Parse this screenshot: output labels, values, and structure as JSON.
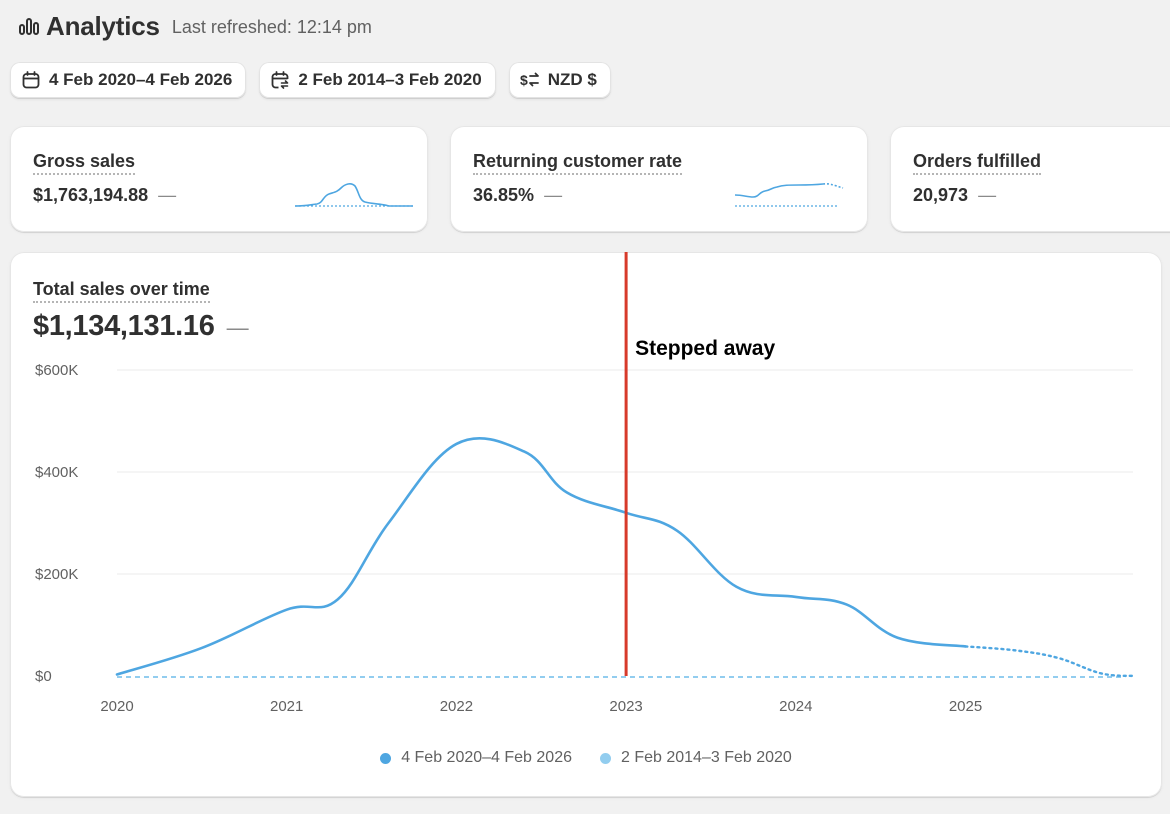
{
  "header": {
    "title": "Analytics",
    "refreshed": "Last refreshed: 12:14 pm"
  },
  "filters": {
    "date_range": "4 Feb 2020–4 Feb 2026",
    "compare_range": "2 Feb 2014–3 Feb 2020",
    "currency": "NZD $"
  },
  "metrics": [
    {
      "label": "Gross sales",
      "value": "$1,763,194.88",
      "dash": "—"
    },
    {
      "label": "Returning customer rate",
      "value": "36.85%",
      "dash": "—"
    },
    {
      "label": "Orders fulfilled",
      "value": "20,973",
      "dash": "—"
    }
  ],
  "main": {
    "title": "Total sales over time",
    "value": "$1,134,131.16",
    "dash": "—"
  },
  "colors": {
    "primary": "#4ea6e1",
    "comparison": "#92cdef",
    "annotation": "#d73a2a"
  },
  "chart_data": {
    "type": "line",
    "title": "Total sales over time",
    "ylim": [
      0,
      600000
    ],
    "yticks": [
      {
        "value": 0,
        "label": "$0"
      },
      {
        "value": 200000,
        "label": "$200K"
      },
      {
        "value": 400000,
        "label": "$400K"
      },
      {
        "value": 600000,
        "label": "$600K"
      }
    ],
    "xlim": [
      2020,
      2026
    ],
    "xticks": [
      {
        "value": 2020,
        "label": "2020"
      },
      {
        "value": 2021,
        "label": "2021"
      },
      {
        "value": 2022,
        "label": "2022"
      },
      {
        "value": 2023,
        "label": "2023"
      },
      {
        "value": 2024,
        "label": "2024"
      },
      {
        "value": 2025,
        "label": "2025"
      }
    ],
    "series": [
      {
        "name": "4 Feb 2020–4 Feb 2026",
        "style": "solid",
        "x": [
          2020,
          2020.5,
          2021,
          2021.3,
          2021.6,
          2022,
          2022.4,
          2022.65,
          2023,
          2023.3,
          2023.65,
          2024,
          2024.3,
          2024.6,
          2025
        ],
        "y": [
          3000,
          55000,
          130000,
          150000,
          300000,
          455000,
          440000,
          360000,
          320000,
          285000,
          175000,
          155000,
          140000,
          75000,
          58000
        ]
      },
      {
        "name": "4 Feb 2020–4 Feb 2026 (projected)",
        "style": "dotted",
        "x": [
          2025,
          2025.3,
          2025.55,
          2025.8,
          2026
        ],
        "y": [
          58000,
          50000,
          35000,
          5000,
          0
        ]
      },
      {
        "name": "2 Feb 2014–3 Feb 2020",
        "style": "dashed",
        "x": [
          2020,
          2026
        ],
        "y": [
          0,
          0
        ]
      }
    ],
    "annotations": [
      {
        "x": 2023,
        "label": "Stepped away"
      }
    ],
    "legend": [
      {
        "label": "4 Feb 2020–4 Feb 2026"
      },
      {
        "label": "2 Feb 2014–3 Feb 2020"
      }
    ]
  }
}
